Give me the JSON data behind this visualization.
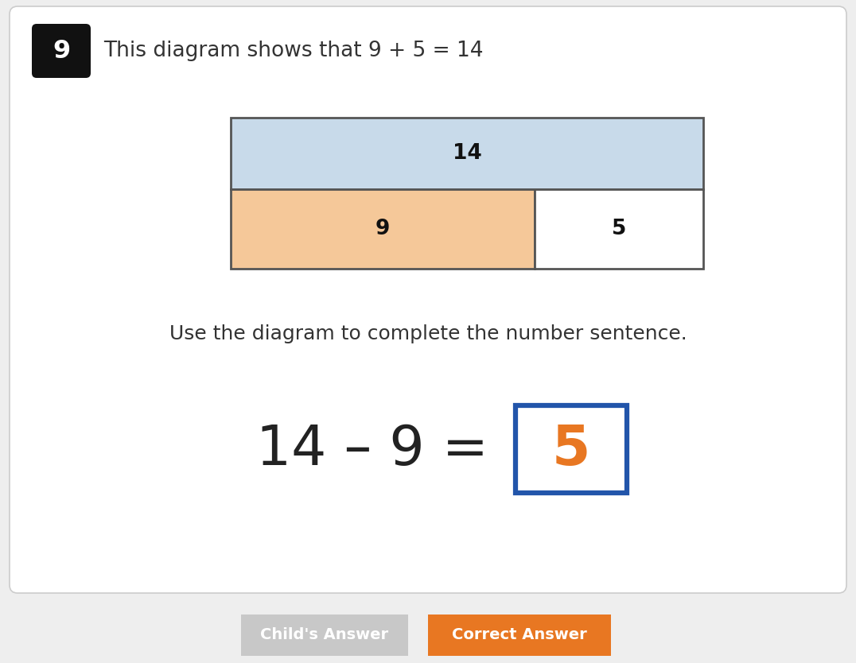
{
  "background_color": "#eeeeee",
  "card_color": "#ffffff",
  "question_number": "9",
  "question_number_bg": "#111111",
  "title_text": "This diagram shows that 9 + 5 = 14",
  "title_fontsize": 19,
  "top_rect_label": "14",
  "top_rect_color": "#c8daea",
  "left_rect_label": "9",
  "left_rect_color": "#f5c899",
  "right_rect_label": "5",
  "right_rect_color": "#ffffff",
  "instruction_text": "Use the diagram to complete the number sentence.",
  "instruction_fontsize": 18,
  "equation_text": "14 – 9 = ",
  "equation_answer": "5",
  "equation_fontsize": 50,
  "answer_color": "#e87722",
  "answer_box_color": "#2255aa",
  "button1_text": "Child's Answer",
  "button1_color": "#c8c8c8",
  "button2_text": "Correct Answer",
  "button2_color": "#e87722",
  "button_text_color": "#ffffff",
  "button_fontsize": 14
}
